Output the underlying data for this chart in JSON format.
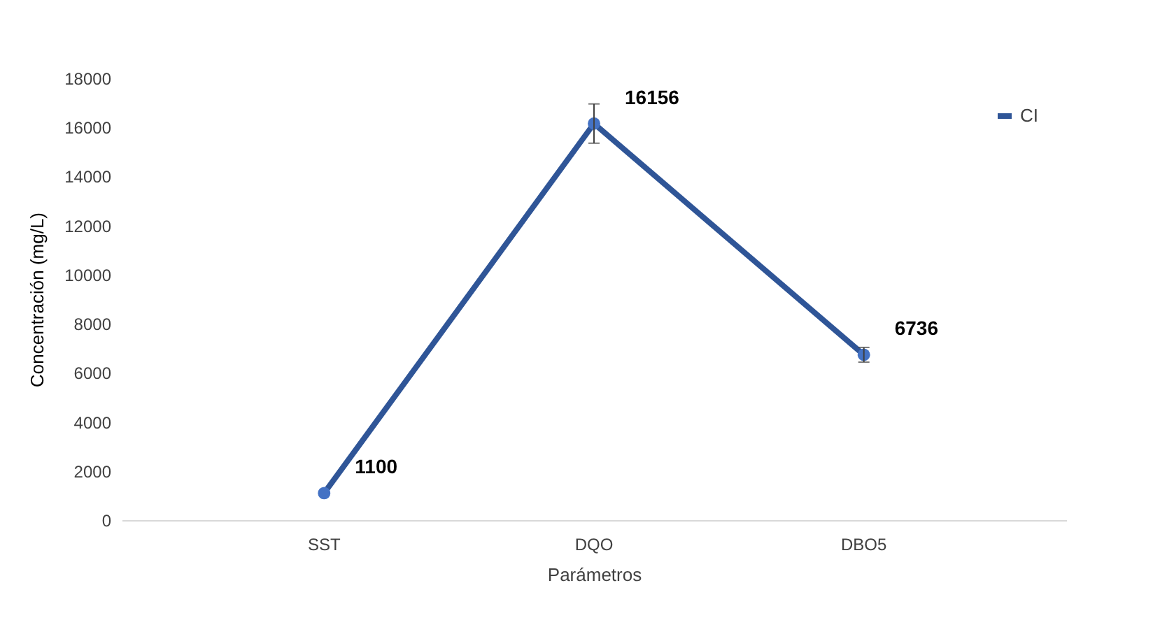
{
  "chart_data": {
    "type": "line",
    "xlabel": "Parámetros",
    "ylabel": "Concentración (mg/L)",
    "categories": [
      "SST",
      "DQO",
      "DBO5"
    ],
    "series": [
      {
        "name": "CI",
        "color": "#2f5597",
        "values": [
          1100,
          16156,
          6736
        ],
        "errors": [
          null,
          800,
          300
        ]
      }
    ],
    "ylim": [
      0,
      18000
    ],
    "yticks": [
      0,
      2000,
      4000,
      6000,
      8000,
      10000,
      12000,
      14000,
      16000,
      18000
    ],
    "grid": false,
    "legend": "top right",
    "marker": "circle",
    "data_labels": true
  }
}
